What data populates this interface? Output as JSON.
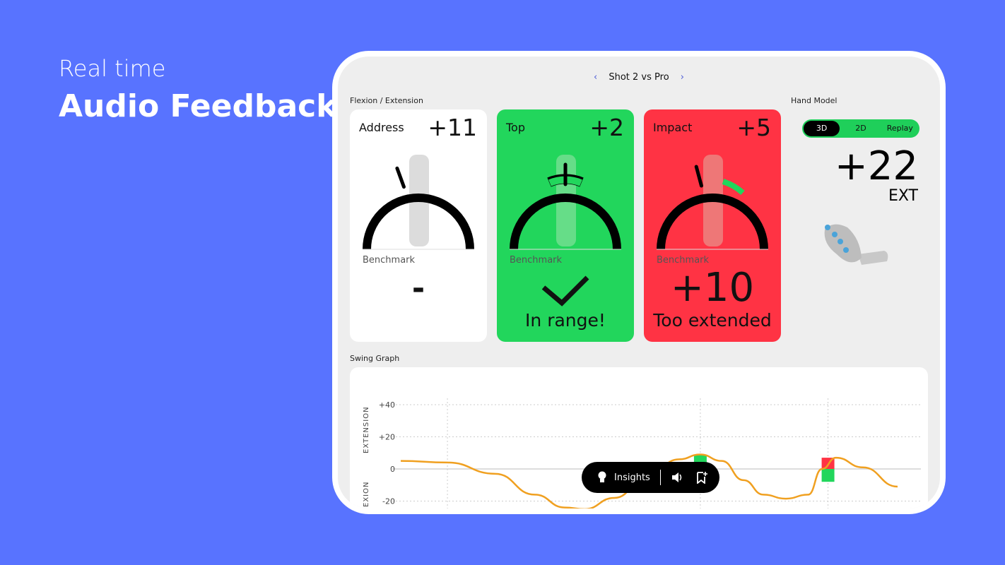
{
  "hero": {
    "line1": "Real time",
    "line2": "Audio Feedback"
  },
  "nav": {
    "prev": "‹",
    "title": "Shot 2 vs Pro",
    "next": "›"
  },
  "section_flexion": "Flexion / Extension",
  "section_hand": "Hand Model",
  "section_graph": "Swing Graph",
  "cards": [
    {
      "title": "Address",
      "value": "+11",
      "benchmark_label": "Benchmark",
      "result": "-",
      "result_text": "",
      "color": "#ffffff"
    },
    {
      "title": "Top",
      "value": "+2",
      "benchmark_label": "Benchmark",
      "result": "check-icon",
      "result_text": "In range!",
      "color": "#22d65c"
    },
    {
      "title": "Impact",
      "value": "+5",
      "benchmark_label": "Benchmark",
      "result": "+10",
      "result_text": "Too extended",
      "color": "#ff3344"
    }
  ],
  "hand_model": {
    "tabs": [
      "3D",
      "2D",
      "Replay"
    ],
    "active_tab": "3D",
    "value": "+22",
    "unit": "EXT",
    "color": "#22d65c"
  },
  "toolbar": {
    "insights_label": "Insights",
    "icons": [
      "lightbulb-icon",
      "speaker-icon",
      "bookmark-add-icon"
    ]
  },
  "chart_data": {
    "type": "line",
    "ylabel_top": "EXTENSION",
    "ylabel_bottom": "EXION",
    "yticks": [
      "+40",
      "+20",
      "0",
      "-20"
    ],
    "ylim": [
      -25,
      45
    ],
    "grid": true,
    "line_color": "#f0a020",
    "series": [
      {
        "points": [
          [
            0,
            5
          ],
          [
            9.4,
            4
          ],
          [
            19,
            -3
          ],
          [
            27,
            -16
          ],
          [
            33,
            -24
          ],
          [
            37,
            -25
          ],
          [
            43,
            -18
          ],
          [
            50,
            -3
          ],
          [
            56,
            6
          ],
          [
            60.3,
            9
          ],
          [
            64.6,
            5
          ],
          [
            69,
            -7
          ],
          [
            73,
            -16
          ],
          [
            77.5,
            -18.5
          ],
          [
            82,
            -16
          ],
          [
            84.8,
            0
          ],
          [
            87.6,
            7
          ],
          [
            93,
            1
          ],
          [
            100,
            -11
          ]
        ]
      }
    ],
    "markers": [
      9.4,
      60.3,
      86
    ],
    "bars": [
      {
        "x": 60.3,
        "from": 0,
        "to": 9,
        "color": "#22d65c"
      },
      {
        "x": 86,
        "from": 0,
        "to": 7,
        "color": "#ff3344"
      },
      {
        "x": 86,
        "from": 0,
        "to": -8,
        "color": "#22d65c"
      }
    ]
  }
}
